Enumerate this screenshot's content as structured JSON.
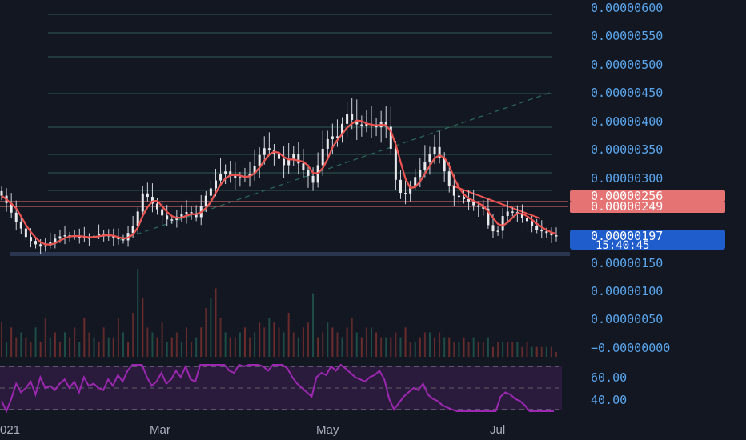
{
  "colors": {
    "background": "#131722",
    "up": "#26a69a",
    "down": "#ef5350",
    "price_axis_text": "#5aa6ee",
    "fib_lines": "#2d5a52",
    "red_label": "#e57373",
    "blue_label": "#1f5ccc",
    "rsi_line": "#9c27b0",
    "rsi_band": "#2a1b3d"
  },
  "price_axis": {
    "labels": [
      "0.00000600",
      "0.00000550",
      "0.00000500",
      "0.00000450",
      "0.00000400",
      "0.00000350",
      "0.00000300",
      "0.00000150",
      "0.00000100",
      "0.00000050",
      "−0.00000000"
    ]
  },
  "price_tags": {
    "upper_red": "0.00000256",
    "lower_red": "0.00000249",
    "current_price": "0.00000197",
    "countdown": "15:40:45"
  },
  "rsi_axis": {
    "labels": [
      "60.00",
      "40.00"
    ]
  },
  "time_axis": {
    "labels": [
      "021",
      "Mar",
      "May",
      "Jul"
    ]
  },
  "chart_data": [
    {
      "type": "candlestick",
      "pane": "price",
      "ylim": [
        1.5e-06,
        6e-06
      ],
      "close_series_approx": [
        2.68e-06,
        2.55e-06,
        2.38e-06,
        2.22e-06,
        2.1e-06,
        1.95e-06,
        1.88e-06,
        1.82e-06,
        1.78e-06,
        1.8e-06,
        1.86e-06,
        1.92e-06,
        1.96e-06,
        1.98e-06,
        1.97e-06,
        1.96e-06,
        1.95e-06,
        1.94e-06,
        1.93e-06,
        1.97e-06,
        2.01e-06,
        1.99e-06,
        1.96e-06,
        1.93e-06,
        1.91e-06,
        1.89e-06,
        2.02e-06,
        2.15e-06,
        2.4e-06,
        2.72e-06,
        2.66e-06,
        2.54e-06,
        2.44e-06,
        2.33e-06,
        2.26e-06,
        2.25e-06,
        2.31e-06,
        2.35e-06,
        2.39e-06,
        2.37e-06,
        2.3e-06,
        2.49e-06,
        2.68e-06,
        2.81e-06,
        2.95e-06,
        3.07e-06,
        3.11e-06,
        3.03e-06,
        2.99e-06,
        3.01e-06,
        3.02e-06,
        3.07e-06,
        3.21e-06,
        3.4e-06,
        3.52e-06,
        3.49e-06,
        3.42e-06,
        3.33e-06,
        3.22e-06,
        3.31e-06,
        3.42e-06,
        3.25e-06,
        3.14e-06,
        3.03e-06,
        2.91e-06,
        3.22e-06,
        3.51e-06,
        3.68e-06,
        3.73e-06,
        3.73e-06,
        3.95e-06,
        4.12e-06,
        4.02e-06,
        3.94e-06,
        3.92e-06,
        3.95e-06,
        3.93e-06,
        3.89e-06,
        3.98e-06,
        3.9e-06,
        3.51e-06,
        2.96e-06,
        2.73e-06,
        2.72e-06,
        2.86e-06,
        3.01e-06,
        3.13e-06,
        3.28e-06,
        3.41e-06,
        3.54e-06,
        3.35e-06,
        3.11e-06,
        2.85e-06,
        2.68e-06,
        2.66e-06,
        2.62e-06,
        2.58e-06,
        2.51e-06,
        2.48e-06,
        2.45e-06,
        2.16e-06,
        2.05e-06,
        2.06e-06,
        2.32e-06,
        2.4e-06,
        2.39e-06,
        2.36e-06,
        2.29e-06,
        2.23e-06,
        2.14e-06,
        2.08e-06,
        2.05e-06,
        2.02e-06,
        1.98e-06,
        1.97e-06
      ],
      "horizontal_levels": [
        2.56e-06,
        2.49e-06,
        1.97e-06
      ],
      "fib_levels_approx": [
        2.8e-06,
        3.25e-06,
        3.4e-06,
        3.85e-06,
        4.5e-06,
        4.9e-06,
        5.4e-06,
        5.8e-06
      ]
    },
    {
      "type": "bar",
      "pane": "volume",
      "values_approx": [
        7,
        3,
        6,
        4,
        5,
        4,
        3,
        6,
        3,
        8,
        4,
        5,
        3,
        5,
        4,
        6,
        3,
        8,
        5,
        4,
        3,
        6,
        4,
        4,
        8,
        5,
        3,
        9,
        18,
        12,
        6,
        5,
        4,
        7,
        3,
        4,
        5,
        3,
        6,
        3,
        4,
        6,
        10,
        12,
        14,
        8,
        5,
        4,
        4,
        5,
        6,
        4,
        5,
        7,
        6,
        8,
        7,
        6,
        5,
        9,
        5,
        4,
        6,
        7,
        13,
        4,
        5,
        7,
        6,
        5,
        4,
        6,
        8,
        5,
        4,
        6,
        6,
        5,
        4,
        4,
        4,
        5,
        4,
        6,
        3,
        3,
        4,
        5,
        5,
        4,
        5,
        4,
        4,
        3,
        3,
        4,
        3,
        4,
        3,
        3,
        4,
        2,
        3,
        3,
        3,
        3,
        3,
        2,
        3,
        2,
        2,
        2,
        2,
        2,
        1
      ]
    },
    {
      "type": "line",
      "pane": "rsi",
      "ylim": [
        30,
        75
      ],
      "guides": [
        60,
        40
      ],
      "values_approx": [
        44,
        39,
        45,
        52,
        48,
        50,
        53,
        47,
        55,
        50,
        51,
        49,
        52,
        54,
        50,
        53,
        48,
        55,
        51,
        52,
        50,
        49,
        54,
        51,
        56,
        53,
        58,
        71,
        66,
        62,
        55,
        51,
        53,
        57,
        52,
        54,
        58,
        55,
        60,
        54,
        53,
        61,
        63,
        67,
        65,
        62,
        64,
        58,
        57,
        61,
        60,
        63,
        64,
        62,
        60,
        58,
        61,
        66,
        62,
        59,
        55,
        52,
        50,
        48,
        46,
        55,
        57,
        56,
        60,
        58,
        61,
        59,
        57,
        55,
        54,
        53,
        55,
        56,
        58,
        54,
        45,
        40,
        43,
        46,
        48,
        50,
        49,
        52,
        47,
        45,
        44,
        42,
        41,
        40,
        39,
        37,
        36,
        35,
        38,
        37,
        34,
        31,
        38,
        46,
        48,
        47,
        45,
        44,
        42,
        38,
        36,
        35,
        37,
        35,
        34
      ]
    }
  ]
}
